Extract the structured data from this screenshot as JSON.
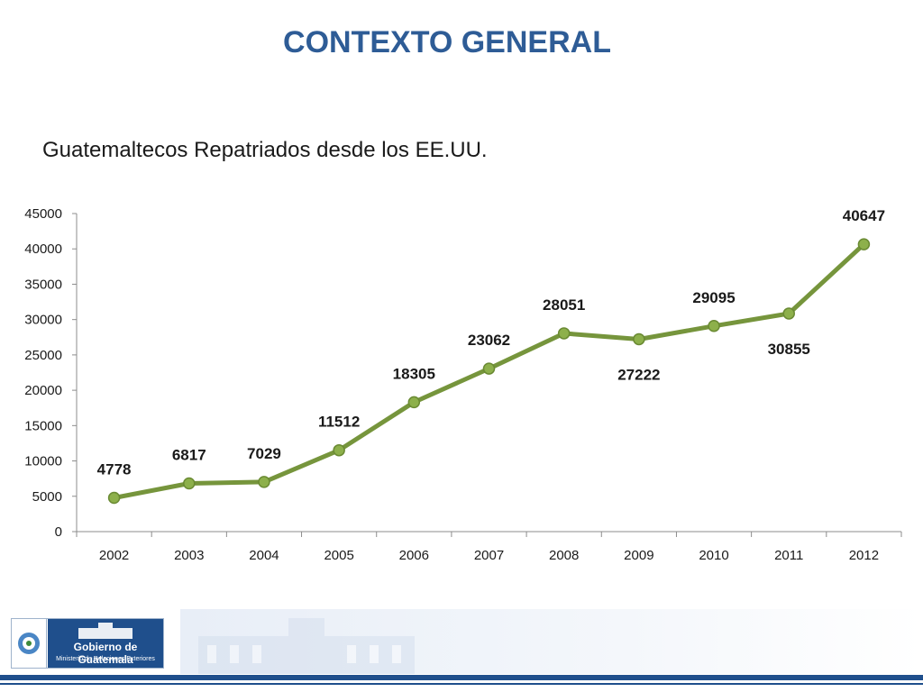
{
  "slide": {
    "title": "CONTEXTO GENERAL",
    "subtitle": "Guatemaltecos Repatriados desde los EE.UU."
  },
  "chart_data": {
    "type": "line",
    "categories": [
      "2002",
      "2003",
      "2004",
      "2005",
      "2006",
      "2007",
      "2008",
      "2009",
      "2010",
      "2011",
      "2012"
    ],
    "values": [
      4778,
      6817,
      7029,
      11512,
      18305,
      23062,
      28051,
      27222,
      29095,
      30855,
      40647
    ],
    "data_labels": [
      "4778",
      "6817",
      "7029",
      "11512",
      "18305",
      "23062",
      "28051",
      "27222",
      "29095",
      "30855",
      "40647"
    ],
    "y_ticks": [
      "0",
      "5000",
      "10000",
      "15000",
      "20000",
      "25000",
      "30000",
      "35000",
      "40000",
      "45000"
    ],
    "ylim": [
      0,
      45000
    ],
    "grid": false,
    "colors": {
      "line": "#76953c",
      "marker": "#8db04b"
    }
  },
  "footer": {
    "logo_text": "Gobierno de Guatemala",
    "ministry_text": "Ministerio de Relaciones Exteriores",
    "emblem_icon": "guatemala-coat-of-arms-icon",
    "palace_icon": "national-palace-icon",
    "accent": "#1f4f8c"
  }
}
